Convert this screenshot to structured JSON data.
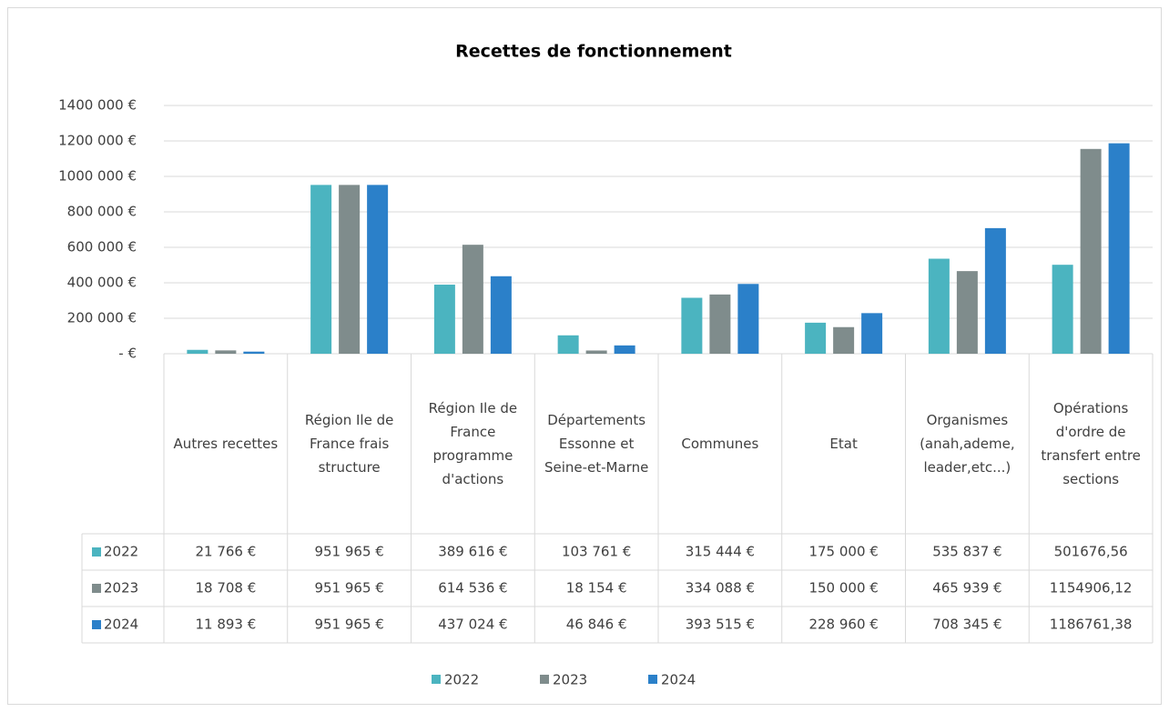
{
  "chart_data": {
    "type": "bar",
    "title": "Recettes de fonctionnement",
    "categories": [
      "Autres recettes",
      "Région Ile de France frais structure",
      "Région Ile de France programme d'actions",
      "Départements Essonne et Seine-et-Marne",
      "Communes",
      "Etat",
      "Organismes (anah,ademe, leader,etc...)",
      "Opérations d'ordre de transfert entre sections"
    ],
    "series": [
      {
        "name": "2022",
        "color": "#4bb4c0",
        "values": [
          21766,
          951965,
          389616,
          103761,
          315444,
          175000,
          535837,
          501676.56
        ],
        "value_labels": [
          "21 766 €",
          "951 965 €",
          "389 616 €",
          "103 761 €",
          "315 444 €",
          "175 000 €",
          "535 837 €",
          "501676,56"
        ]
      },
      {
        "name": "2023",
        "color": "#7f8c8c",
        "values": [
          18708,
          951965,
          614536,
          18154,
          334088,
          150000,
          465939,
          1154906.12
        ],
        "value_labels": [
          "18 708 €",
          "951 965 €",
          "614 536 €",
          "18 154 €",
          "334 088 €",
          "150 000 €",
          "465 939 €",
          "1154906,12"
        ]
      },
      {
        "name": "2024",
        "color": "#2b80c9",
        "values": [
          11893,
          951965,
          437024,
          46846,
          393515,
          228960,
          708345,
          1186761.38
        ],
        "value_labels": [
          "11 893 €",
          "951 965 €",
          "437 024 €",
          "46 846 €",
          "393 515 €",
          "228 960 €",
          "708 345 €",
          "1186761,38"
        ]
      }
    ],
    "ylim": [
      0,
      1400000
    ],
    "yticks": [
      {
        "value": 0,
        "label": "- €"
      },
      {
        "value": 200000,
        "label": "200 000 €"
      },
      {
        "value": 400000,
        "label": "400 000 €"
      },
      {
        "value": 600000,
        "label": "600 000 €"
      },
      {
        "value": 800000,
        "label": "800 000 €"
      },
      {
        "value": 1000000,
        "label": "1000 000 €"
      },
      {
        "value": 1200000,
        "label": "1200 000 €"
      },
      {
        "value": 1400000,
        "label": "1400 000 €"
      }
    ],
    "grid": true
  }
}
